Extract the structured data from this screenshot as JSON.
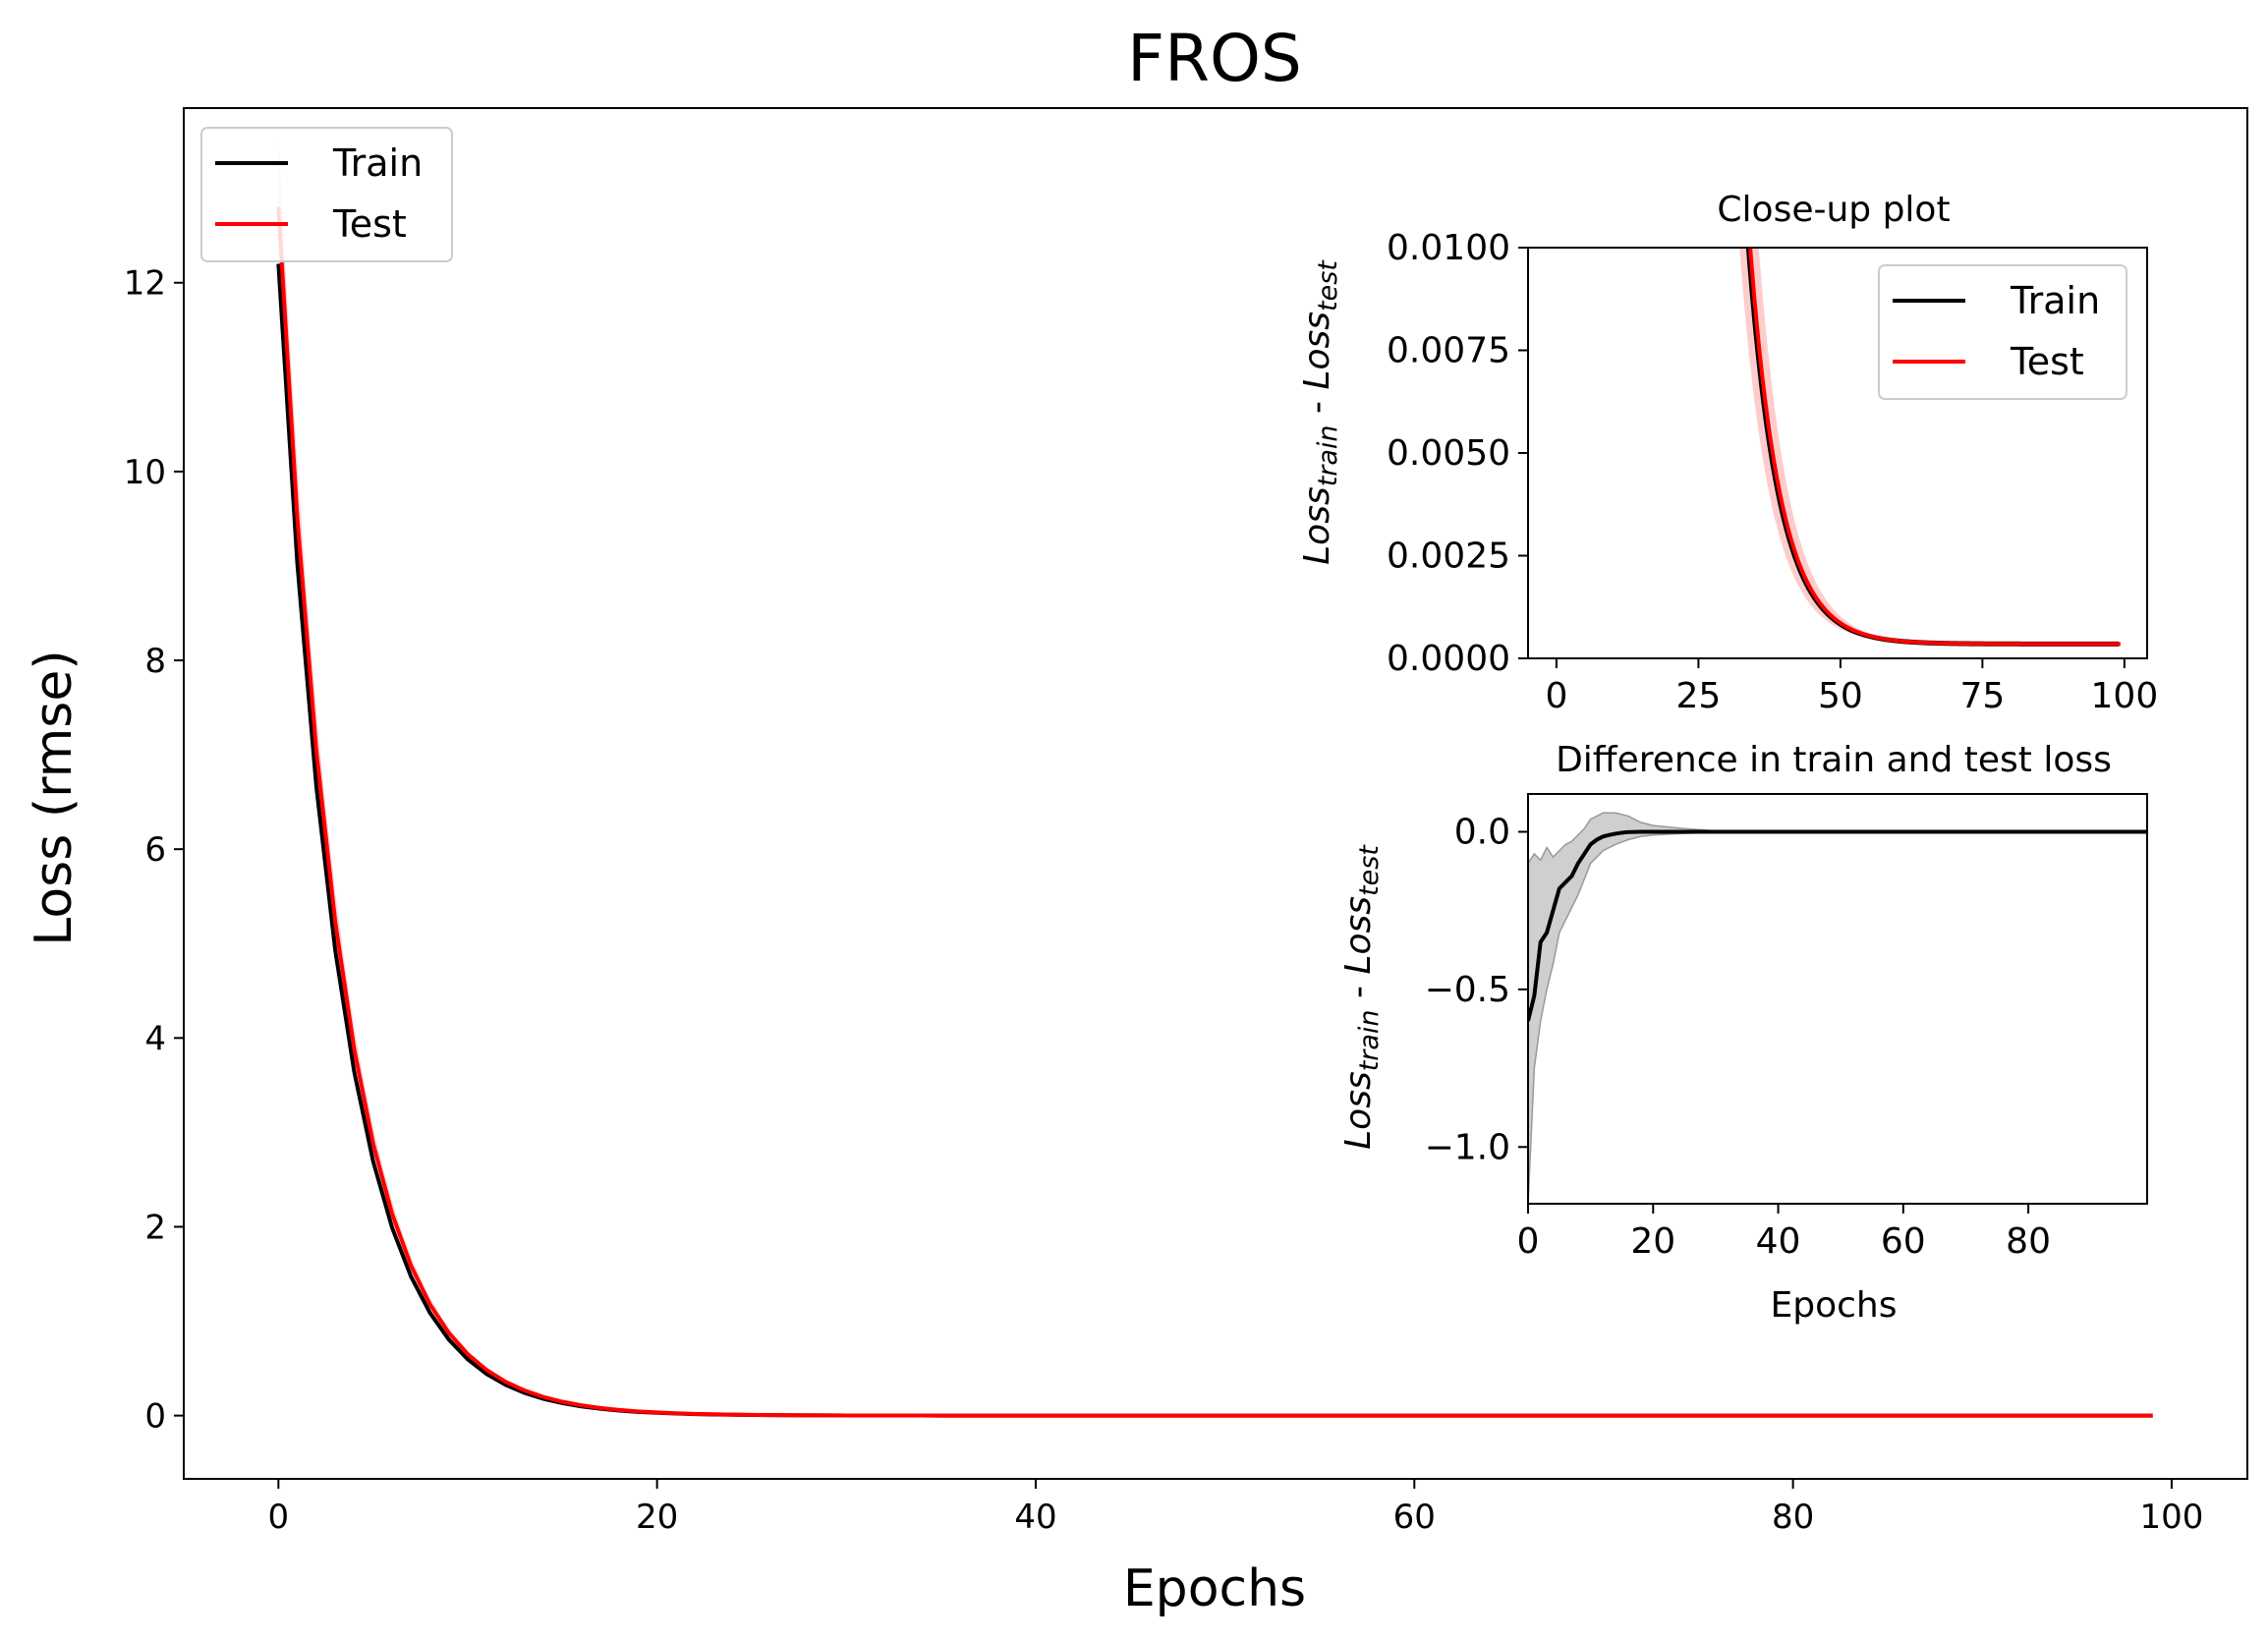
{
  "chart_data": [
    {
      "type": "line",
      "title": "FROS",
      "xlabel": "Epochs",
      "ylabel": "Loss (rmse)",
      "xlim": [
        -5,
        104
      ],
      "ylim": [
        -0.67,
        13.85
      ],
      "xticks": [
        0,
        20,
        40,
        60,
        80,
        100
      ],
      "yticks": [
        0,
        2,
        4,
        6,
        8,
        10,
        12
      ],
      "grid": false,
      "legend_position": "upper-left",
      "series": [
        {
          "name": "Train",
          "color": "#000000",
          "model": {
            "kind": "exp_decay",
            "y0": 12.2,
            "rate": 0.302,
            "floor": 0.0003
          },
          "x_range": [
            0,
            99
          ]
        },
        {
          "name": "Test",
          "color": "#ff0000",
          "model": {
            "kind": "exp_decay",
            "y0": 12.8,
            "rate": 0.298,
            "floor": 0.0003
          },
          "x_range": [
            0,
            99
          ]
        }
      ]
    },
    {
      "type": "line",
      "title": "Close-up plot",
      "xlabel": "",
      "ylabel": {
        "base": "Loss",
        "sub1": "train",
        "sep": " - ",
        "sub2": "test"
      },
      "xlim": [
        -5,
        104
      ],
      "ylim": [
        0,
        0.01
      ],
      "xticks": [
        0,
        25,
        50,
        75,
        100
      ],
      "yticks": [
        0.0,
        0.0025,
        0.005,
        0.0075,
        0.01
      ],
      "ytick_labels": [
        "0.0000",
        "0.0025",
        "0.0050",
        "0.0075",
        "0.0100"
      ],
      "grid": false,
      "legend_position": "upper-right",
      "series": [
        {
          "name": "Train",
          "color": "#000000"
        },
        {
          "name": "Test",
          "color": "#ff0000"
        }
      ],
      "band_color": "#ff0000"
    },
    {
      "type": "line",
      "title": "Difference in train and test loss",
      "xlabel": "Epochs",
      "ylabel": {
        "base": "Loss",
        "sub1": "train",
        "sep": " - ",
        "sub2": "test"
      },
      "xlim": [
        0,
        99
      ],
      "ylim": [
        -1.18,
        0.12
      ],
      "xticks": [
        0,
        20,
        40,
        60,
        80
      ],
      "yticks": [
        0.0,
        -0.5,
        -1.0
      ],
      "ytick_labels": [
        "0.0",
        "−0.5",
        "−1.0"
      ],
      "grid": false,
      "series": [
        {
          "name": "difference",
          "color": "#000000",
          "x": [
            0,
            1,
            2,
            3,
            4,
            5,
            6,
            7,
            8,
            9,
            10,
            11,
            12,
            13,
            14,
            15,
            16,
            18,
            20,
            25,
            30,
            40,
            60,
            80,
            99
          ],
          "y": [
            -0.6,
            -0.52,
            -0.35,
            -0.32,
            -0.25,
            -0.18,
            -0.16,
            -0.14,
            -0.1,
            -0.07,
            -0.04,
            -0.025,
            -0.015,
            -0.01,
            -0.006,
            -0.003,
            -0.001,
            0.0,
            0.0,
            0.0,
            0.0,
            0.0,
            0.0,
            0.0,
            0.0
          ]
        }
      ],
      "band": {
        "color": "#bbbbbb",
        "x": [
          0,
          1,
          2,
          3,
          4,
          5,
          6,
          7,
          8,
          9,
          10,
          12,
          14,
          16,
          18,
          20,
          25,
          30,
          40,
          99
        ],
        "upper": [
          -0.1,
          -0.07,
          -0.09,
          -0.05,
          -0.08,
          -0.06,
          -0.04,
          -0.03,
          -0.01,
          0.01,
          0.04,
          0.06,
          0.06,
          0.05,
          0.03,
          0.02,
          0.01,
          0.003,
          0.0,
          0.0
        ],
        "lower": [
          -1.18,
          -0.75,
          -0.6,
          -0.5,
          -0.42,
          -0.32,
          -0.28,
          -0.24,
          -0.2,
          -0.15,
          -0.1,
          -0.06,
          -0.04,
          -0.025,
          -0.015,
          -0.01,
          -0.005,
          -0.002,
          0.0,
          0.0
        ]
      }
    }
  ]
}
